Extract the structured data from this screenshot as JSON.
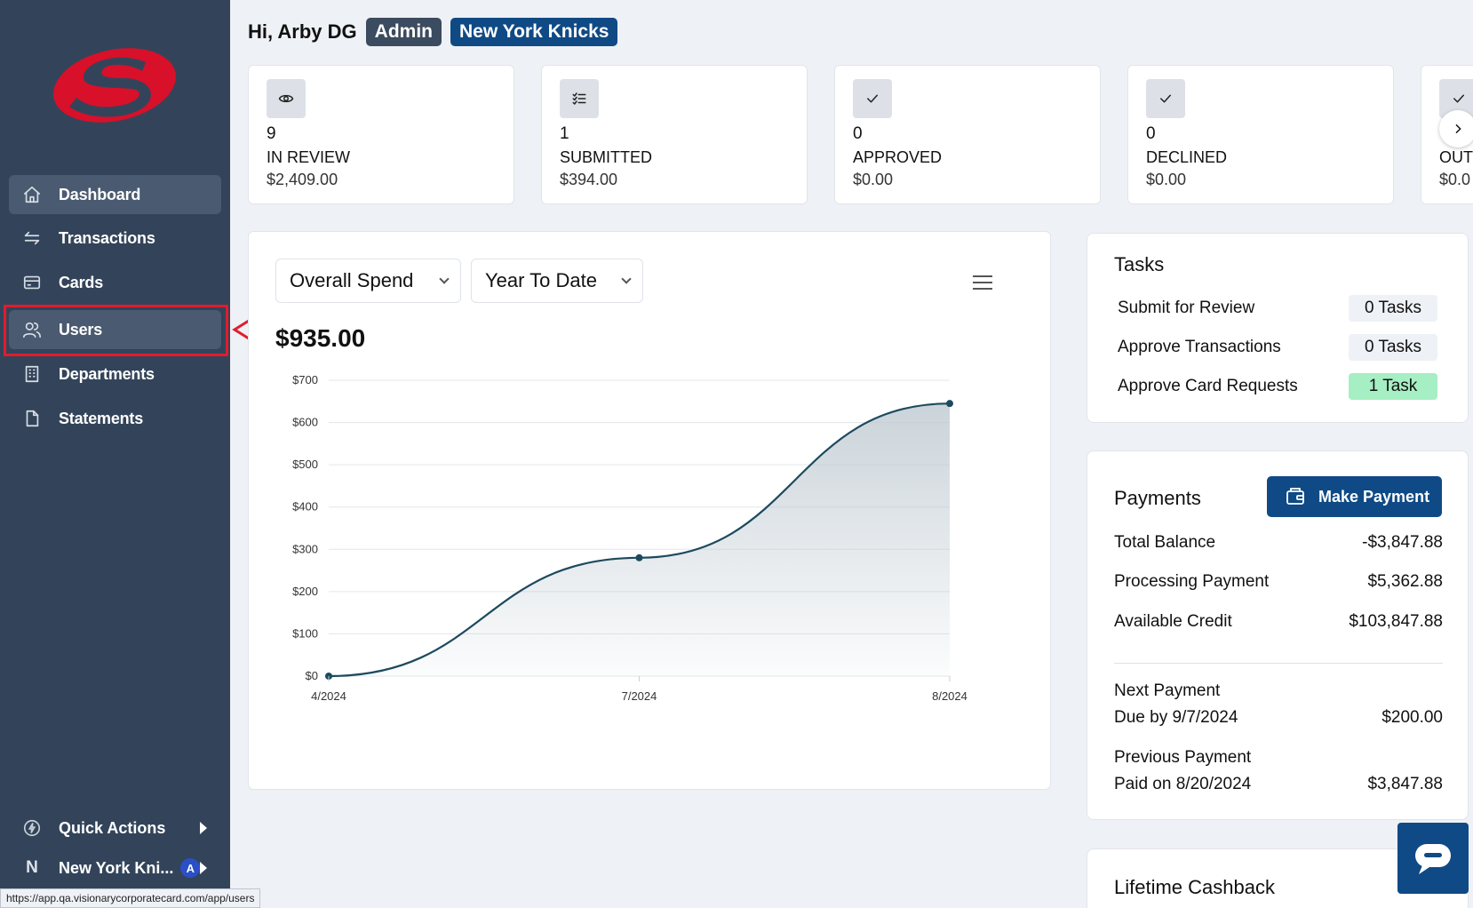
{
  "header": {
    "greeting": "Hi, Arby DG",
    "role_badge": "Admin",
    "team_badge": "New York Knicks"
  },
  "sidebar": {
    "items": [
      {
        "label": "Dashboard",
        "icon": "home-icon"
      },
      {
        "label": "Transactions",
        "icon": "transfer-icon"
      },
      {
        "label": "Cards",
        "icon": "card-icon"
      },
      {
        "label": "Users",
        "icon": "users-icon"
      },
      {
        "label": "Departments",
        "icon": "building-icon"
      },
      {
        "label": "Statements",
        "icon": "document-icon"
      }
    ],
    "quick_actions": "Quick Actions",
    "org_letter": "N",
    "org_name": "New York Kni...",
    "org_badge": "A",
    "status_url": "https://app.qa.visionarycorporatecard.com/app/users"
  },
  "stats": [
    {
      "count": "9",
      "label": "IN REVIEW",
      "amount": "$2,409.00",
      "icon": "eye-icon"
    },
    {
      "count": "1",
      "label": "SUBMITTED",
      "amount": "$394.00",
      "icon": "checklist-icon"
    },
    {
      "count": "0",
      "label": "APPROVED",
      "amount": "$0.00",
      "icon": "check-icon"
    },
    {
      "count": "0",
      "label": "DECLINED",
      "amount": "$0.00",
      "icon": "check-icon"
    },
    {
      "count": "",
      "label": "OUT",
      "amount": "$0.0",
      "icon": "check-icon"
    }
  ],
  "chart": {
    "metric_select": "Overall Spend",
    "range_select": "Year To Date",
    "total": "$935.00"
  },
  "chart_data": {
    "type": "area",
    "categories": [
      "4/2024",
      "7/2024",
      "8/2024"
    ],
    "values": [
      0,
      280,
      645
    ],
    "ylim": [
      0,
      700
    ],
    "yticks": [
      "$0",
      "$100",
      "$200",
      "$300",
      "$400",
      "$500",
      "$600",
      "$700"
    ],
    "grid": true,
    "colors": {
      "line": "#1d4a5e",
      "fill": "#b9c5cd"
    }
  },
  "tasks": {
    "title": "Tasks",
    "rows": [
      {
        "label": "Submit for Review",
        "badge": "0 Tasks"
      },
      {
        "label": "Approve Transactions",
        "badge": "0 Tasks"
      },
      {
        "label": "Approve Card Requests",
        "badge": "1 Task"
      }
    ]
  },
  "payments": {
    "title": "Payments",
    "make_payment": "Make Payment",
    "total_balance_label": "Total Balance",
    "total_balance": "-$3,847.88",
    "processing_label": "Processing Payment",
    "processing": "$5,362.88",
    "available_label": "Available Credit",
    "available": "$103,847.88",
    "next_label": "Next Payment",
    "next_due": "Due by 9/7/2024",
    "next_amount": "$200.00",
    "prev_label": "Previous Payment",
    "prev_paid": "Paid on 8/20/2024",
    "prev_amount": "$3,847.88"
  },
  "cashback": {
    "title": "Lifetime Cashback"
  }
}
